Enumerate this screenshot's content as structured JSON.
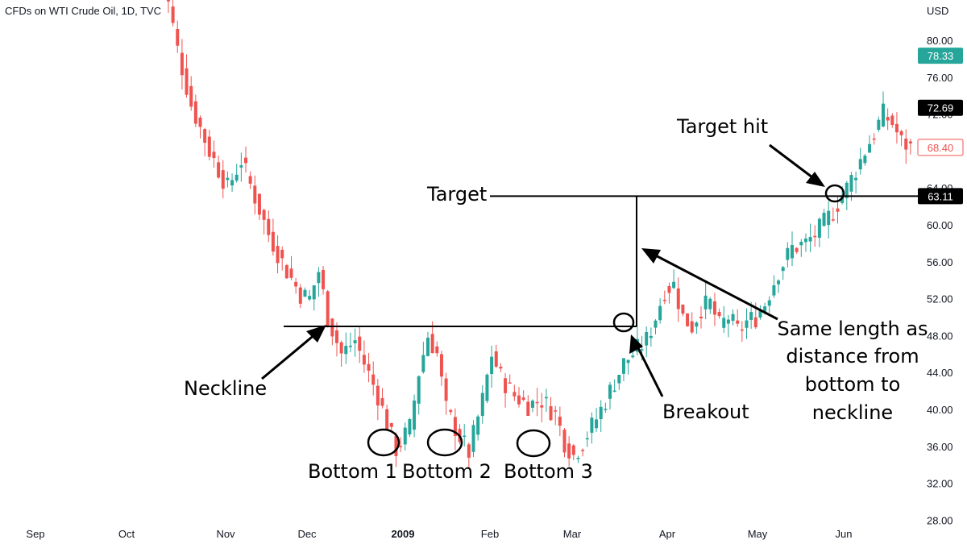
{
  "header": {
    "title": "CFDs on WTI Crude Oil, 1D, TVC"
  },
  "colors": {
    "up": "#26a69a",
    "down": "#ef5350",
    "line": "#000000",
    "axis_text": "#131722"
  },
  "chart_data": {
    "type": "candlestick",
    "title": "CFDs on WTI Crude Oil, 1D, TVC",
    "y_unit": "USD",
    "ylim": [
      26.5,
      82
    ],
    "y_ticks": [
      "80.00",
      "76.00",
      "72.00",
      "68.00",
      "64.00",
      "60.00",
      "56.00",
      "52.00",
      "48.00",
      "44.00",
      "40.00",
      "36.00",
      "32.00",
      "28.00"
    ],
    "x_ticks": [
      {
        "label": "Sep",
        "bold": false
      },
      {
        "label": "Oct",
        "bold": false
      },
      {
        "label": "Nov",
        "bold": false
      },
      {
        "label": "Dec",
        "bold": false
      },
      {
        "label": "2009",
        "bold": true
      },
      {
        "label": "Feb",
        "bold": false
      },
      {
        "label": "Mar",
        "bold": false
      },
      {
        "label": "Apr",
        "bold": false
      },
      {
        "label": "May",
        "bold": false
      },
      {
        "label": "Jun",
        "bold": false
      }
    ],
    "price_badges": [
      {
        "value": "78.33",
        "price": 78.33,
        "style": "teal"
      },
      {
        "value": "72.69",
        "price": 72.69,
        "style": "black"
      },
      {
        "value": "68.40",
        "price": 68.4,
        "style": "red-outline"
      },
      {
        "value": "63.11",
        "price": 63.11,
        "style": "black"
      }
    ],
    "neckline_price": 49.0,
    "target_price": 63.11,
    "annotations": {
      "neckline": "Neckline",
      "target": "Target",
      "target_hit": "Target hit",
      "breakout": "Breakout",
      "bottom1": "Bottom 1",
      "bottom2": "Bottom 2",
      "bottom3": "Bottom 3",
      "same_length": [
        "Same length as",
        "distance from",
        "bottom to",
        "neckline"
      ]
    },
    "anchors": [
      {
        "i": 0,
        "p": 90
      },
      {
        "i": 3,
        "p": 84
      },
      {
        "i": 5,
        "p": 79
      },
      {
        "i": 8,
        "p": 73
      },
      {
        "i": 12,
        "p": 68
      },
      {
        "i": 16,
        "p": 64
      },
      {
        "i": 19,
        "p": 67
      },
      {
        "i": 22,
        "p": 63
      },
      {
        "i": 25,
        "p": 59
      },
      {
        "i": 29,
        "p": 55
      },
      {
        "i": 32,
        "p": 52.5
      },
      {
        "i": 34,
        "p": 52
      },
      {
        "i": 36,
        "p": 55
      },
      {
        "i": 38,
        "p": 50
      },
      {
        "i": 41,
        "p": 46
      },
      {
        "i": 44,
        "p": 47.5
      },
      {
        "i": 46,
        "p": 45
      },
      {
        "i": 49,
        "p": 41.5
      },
      {
        "i": 52,
        "p": 37
      },
      {
        "i": 53,
        "p": 35.7
      },
      {
        "i": 56,
        "p": 38
      },
      {
        "i": 58,
        "p": 44
      },
      {
        "i": 60,
        "p": 48
      },
      {
        "i": 62,
        "p": 46
      },
      {
        "i": 64,
        "p": 40
      },
      {
        "i": 67,
        "p": 37
      },
      {
        "i": 69,
        "p": 35.3
      },
      {
        "i": 72,
        "p": 41
      },
      {
        "i": 74,
        "p": 46
      },
      {
        "i": 76,
        "p": 43.5
      },
      {
        "i": 79,
        "p": 41.5
      },
      {
        "i": 82,
        "p": 40.5
      },
      {
        "i": 85,
        "p": 41
      },
      {
        "i": 88,
        "p": 39.5
      },
      {
        "i": 90,
        "p": 36.5
      },
      {
        "i": 92,
        "p": 35
      },
      {
        "i": 94,
        "p": 36.5
      },
      {
        "i": 97,
        "p": 39
      },
      {
        "i": 100,
        "p": 42
      },
      {
        "i": 103,
        "p": 45
      },
      {
        "i": 106,
        "p": 46.5
      },
      {
        "i": 108,
        "p": 47.5
      },
      {
        "i": 110,
        "p": 50
      },
      {
        "i": 112,
        "p": 53
      },
      {
        "i": 114,
        "p": 53.5
      },
      {
        "i": 116,
        "p": 50
      },
      {
        "i": 118,
        "p": 49
      },
      {
        "i": 120,
        "p": 51
      },
      {
        "i": 122,
        "p": 51.5
      },
      {
        "i": 124,
        "p": 49
      },
      {
        "i": 126,
        "p": 50
      },
      {
        "i": 128,
        "p": 48.5
      },
      {
        "i": 130,
        "p": 49.5
      },
      {
        "i": 132,
        "p": 50
      },
      {
        "i": 134,
        "p": 51.5
      },
      {
        "i": 137,
        "p": 55
      },
      {
        "i": 140,
        "p": 57.5
      },
      {
        "i": 143,
        "p": 58
      },
      {
        "i": 146,
        "p": 59.5
      },
      {
        "i": 149,
        "p": 61.5
      },
      {
        "i": 152,
        "p": 64
      },
      {
        "i": 155,
        "p": 67
      },
      {
        "i": 158,
        "p": 70
      },
      {
        "i": 160,
        "p": 72
      },
      {
        "i": 162,
        "p": 71
      },
      {
        "i": 164,
        "p": 69
      },
      {
        "i": 166,
        "p": 68.4
      }
    ]
  }
}
